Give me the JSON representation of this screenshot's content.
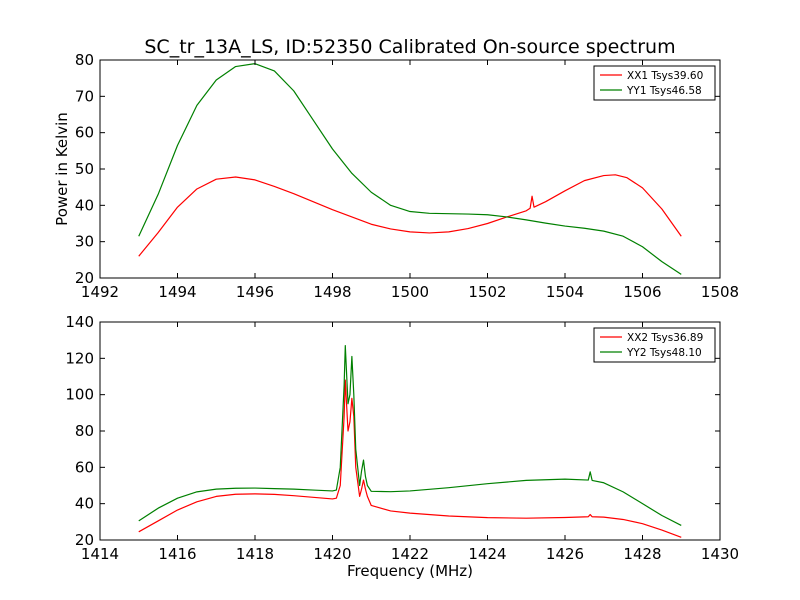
{
  "title": "SC_tr_13A_LS, ID:52350 Calibrated On-source spectrum",
  "ylabel": "Power in Kelvin",
  "xlabel": "Frequency (MHz)",
  "chart_data": [
    {
      "type": "line",
      "xlim": [
        1492,
        1508
      ],
      "ylim": [
        20,
        80
      ],
      "xticks": [
        1492,
        1494,
        1496,
        1498,
        1500,
        1502,
        1504,
        1506,
        1508
      ],
      "yticks": [
        20,
        30,
        40,
        50,
        60,
        70,
        80
      ],
      "legend_position": "top-right",
      "series": [
        {
          "name": "XX1 Tsys39.60",
          "color": "#ff0000",
          "x": [
            1493.0,
            1493.5,
            1494.0,
            1494.5,
            1495.0,
            1495.5,
            1496.0,
            1496.5,
            1497.0,
            1497.5,
            1498.0,
            1498.5,
            1499.0,
            1499.5,
            1500.0,
            1500.5,
            1501.0,
            1501.5,
            1502.0,
            1502.5,
            1503.0,
            1503.1,
            1503.15,
            1503.2,
            1503.5,
            1504.0,
            1504.5,
            1505.0,
            1505.3,
            1505.6,
            1506.0,
            1506.5,
            1507.0
          ],
          "y": [
            26.0,
            32.5,
            39.5,
            44.5,
            47.2,
            47.8,
            47.0,
            45.2,
            43.2,
            41.0,
            38.8,
            36.8,
            34.8,
            33.5,
            32.7,
            32.4,
            32.7,
            33.6,
            35.0,
            36.8,
            38.5,
            39.2,
            42.5,
            39.5,
            41.0,
            44.0,
            46.8,
            48.2,
            48.4,
            47.6,
            44.8,
            39.0,
            31.5
          ]
        },
        {
          "name": "YY1 Tsys46.58",
          "color": "#008000",
          "x": [
            1493.0,
            1493.5,
            1494.0,
            1494.5,
            1495.0,
            1495.5,
            1496.0,
            1496.5,
            1497.0,
            1497.5,
            1498.0,
            1498.5,
            1499.0,
            1499.5,
            1500.0,
            1500.5,
            1501.0,
            1501.5,
            1502.0,
            1502.5,
            1503.0,
            1503.5,
            1504.0,
            1504.5,
            1505.0,
            1505.5,
            1506.0,
            1506.5,
            1507.0
          ],
          "y": [
            31.5,
            43.0,
            56.5,
            67.5,
            74.5,
            78.2,
            79.0,
            77.0,
            71.5,
            63.5,
            55.5,
            48.8,
            43.6,
            40.0,
            38.3,
            37.8,
            37.7,
            37.6,
            37.4,
            36.8,
            36.0,
            35.1,
            34.3,
            33.7,
            32.9,
            31.5,
            28.6,
            24.5,
            21.0
          ]
        }
      ]
    },
    {
      "type": "line",
      "xlim": [
        1414,
        1430
      ],
      "ylim": [
        20,
        140
      ],
      "xticks": [
        1414,
        1416,
        1418,
        1420,
        1422,
        1424,
        1426,
        1428,
        1430
      ],
      "yticks": [
        20,
        40,
        60,
        80,
        100,
        120,
        140
      ],
      "legend_position": "top-right",
      "series": [
        {
          "name": "XX2 Tsys36.89",
          "color": "#ff0000",
          "x": [
            1415.0,
            1415.5,
            1416.0,
            1416.5,
            1417.0,
            1417.5,
            1418.0,
            1418.5,
            1419.0,
            1419.5,
            1420.0,
            1420.1,
            1420.2,
            1420.3,
            1420.33,
            1420.4,
            1420.45,
            1420.5,
            1420.55,
            1420.6,
            1420.7,
            1420.75,
            1420.8,
            1420.85,
            1420.9,
            1421.0,
            1421.5,
            1422.0,
            1423.0,
            1424.0,
            1425.0,
            1426.0,
            1426.6,
            1426.65,
            1426.7,
            1427.0,
            1427.5,
            1428.0,
            1428.5,
            1429.0
          ],
          "y": [
            24.5,
            30.5,
            36.5,
            41.0,
            44.0,
            45.2,
            45.4,
            45.1,
            44.4,
            43.5,
            42.6,
            43.0,
            50.0,
            88.0,
            108.0,
            80.0,
            85.0,
            98.0,
            88.0,
            60.0,
            44.0,
            48.0,
            53.0,
            48.0,
            44.0,
            39.0,
            36.0,
            34.8,
            33.2,
            32.3,
            32.0,
            32.4,
            32.8,
            34.0,
            32.8,
            32.6,
            31.3,
            29.0,
            25.5,
            21.5
          ]
        },
        {
          "name": "YY2 Tsys48.10",
          "color": "#008000",
          "x": [
            1415.0,
            1415.5,
            1416.0,
            1416.5,
            1417.0,
            1417.5,
            1418.0,
            1418.5,
            1419.0,
            1419.5,
            1420.0,
            1420.1,
            1420.2,
            1420.3,
            1420.33,
            1420.4,
            1420.45,
            1420.5,
            1420.55,
            1420.6,
            1420.7,
            1420.75,
            1420.8,
            1420.85,
            1420.9,
            1421.0,
            1421.5,
            1422.0,
            1423.0,
            1424.0,
            1425.0,
            1426.0,
            1426.6,
            1426.65,
            1426.7,
            1427.0,
            1427.5,
            1428.0,
            1428.5,
            1429.0
          ],
          "y": [
            30.5,
            37.5,
            43.0,
            46.5,
            48.0,
            48.5,
            48.6,
            48.3,
            48.0,
            47.5,
            47.0,
            47.5,
            60.0,
            105.0,
            127.0,
            95.0,
            100.0,
            121.0,
            100.0,
            70.0,
            50.0,
            58.0,
            64.0,
            55.0,
            50.0,
            46.8,
            46.6,
            47.0,
            48.8,
            51.0,
            52.8,
            53.5,
            53.0,
            57.5,
            52.8,
            51.5,
            46.5,
            40.0,
            33.5,
            28.0
          ]
        }
      ]
    }
  ]
}
